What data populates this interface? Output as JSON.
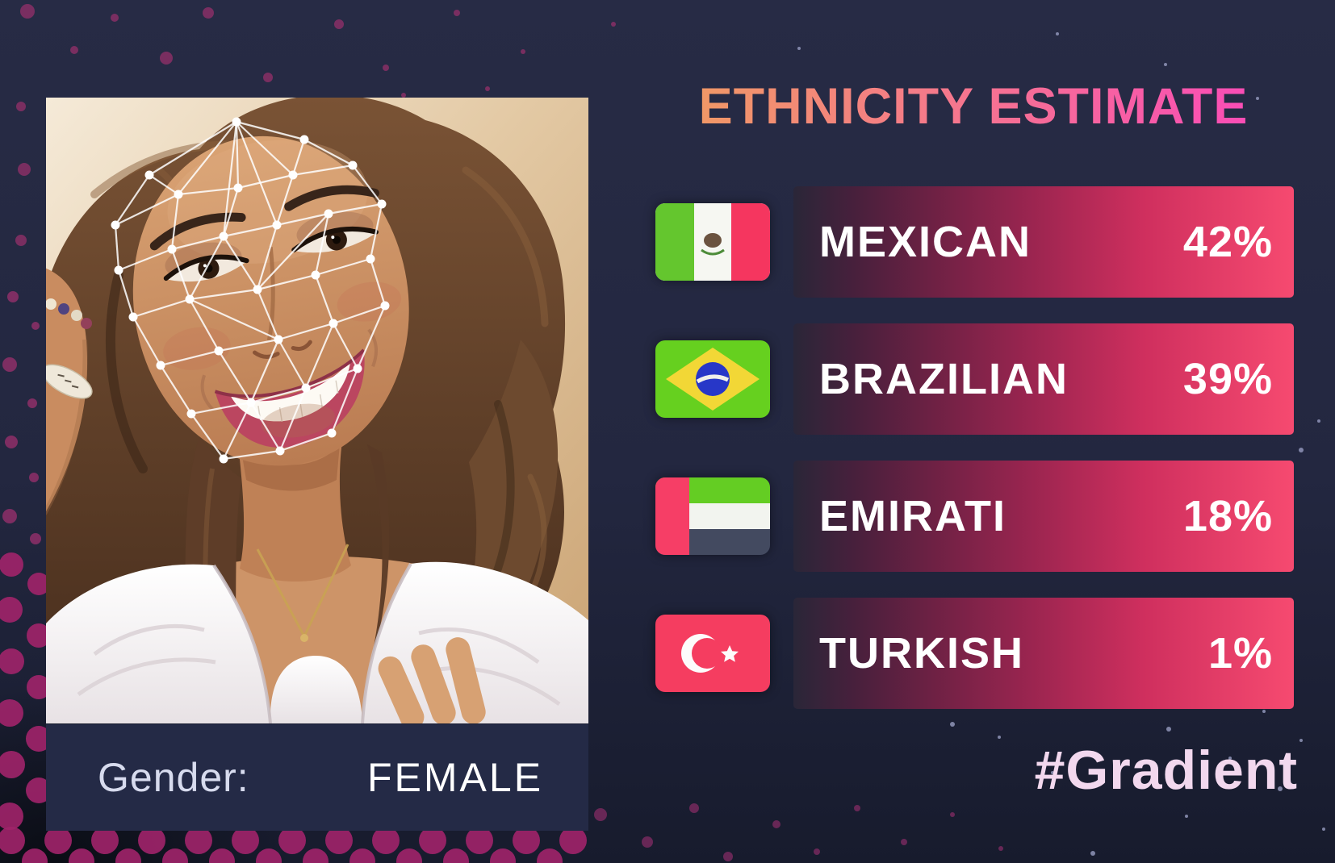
{
  "title": "ETHNICITY ESTIMATE",
  "results": [
    {
      "label": "MEXICAN",
      "value": "42%",
      "flag": "mexico-flag-icon"
    },
    {
      "label": "BRAZILIAN",
      "value": "39%",
      "flag": "brazil-flag-icon"
    },
    {
      "label": "EMIRATI",
      "value": "18%",
      "flag": "uae-flag-icon"
    },
    {
      "label": "TURKISH",
      "value": "1%",
      "flag": "turkey-flag-icon"
    }
  ],
  "gender": {
    "label": "Gender:",
    "value": "FEMALE"
  },
  "watermark": "#Gradient",
  "photo": {
    "description": "woman portrait with white face-landmark mesh overlay"
  },
  "colors": {
    "background": "#232740",
    "gender_bar": "#242a46",
    "title_gradient": [
      "#efa359",
      "#f5768e",
      "#fb40c2"
    ],
    "bar_gradient": [
      "#2a2638",
      "#47203c",
      "#6e2144",
      "#9c2550",
      "#cf2f5e",
      "#f64a70"
    ],
    "watermark_color": "#f2d8ee",
    "dot_magenta": "#a1246a"
  }
}
